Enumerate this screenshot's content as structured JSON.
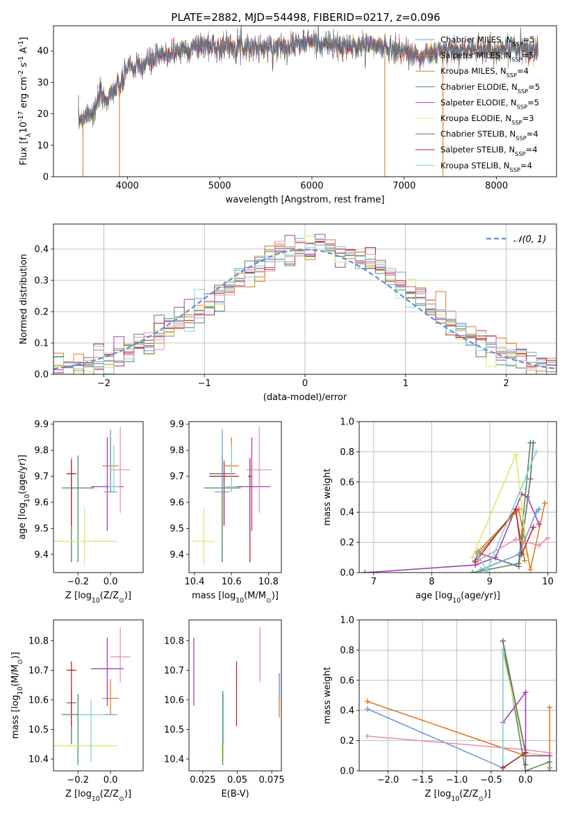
{
  "figure_title": "PLATE=2882, MJD=54498, FIBERID=0217, z=0.096",
  "colors": {
    "chabrier_miles": "#6c9bd6",
    "salpeter_miles": "#e07a22",
    "kroupa_miles": "#b88a2a",
    "chabrier_elodie": "#4f8c5e",
    "salpeter_elodie": "#a23fb0",
    "kroupa_elodie": "#d6e86a",
    "chabrier_stelib": "#6d6d6d",
    "salpeter_stelib": "#b3262a",
    "kroupa_stelib": "#7fd4d4",
    "pink": "#e691b8",
    "normal_curve": "#5b8fd6"
  },
  "chart_data": [
    {
      "id": "spectrum",
      "type": "line",
      "xlabel": "wavelength [Angstrom, rest frame]",
      "ylabel": "Flux [f$_\\lambda$10$^{-17}$ erg cm$^{-2}$ s$^{-1}$ A$^{-1}$]",
      "xlim": [
        3200,
        8650
      ],
      "ylim": [
        0,
        48
      ],
      "xticks": [
        4000,
        5000,
        6000,
        7000,
        8000
      ],
      "yticks": [
        0,
        10,
        20,
        30,
        40
      ],
      "legend_placement": "top-right",
      "legend": [
        {
          "label": "Chabrier MILES, N_SSP=5",
          "color": "#6c9bd6"
        },
        {
          "label": "Salpeter MILES, N_SSP=5",
          "color": "#e07a22"
        },
        {
          "label": "Kroupa MILES, N_SSP=4",
          "color": "#b88a2a"
        },
        {
          "label": "Chabrier ELODIE, N_SSP=5",
          "color": "#4f8c5e"
        },
        {
          "label": "Salpeter ELODIE, N_SSP=5",
          "color": "#a23fb0"
        },
        {
          "label": "Kroupa ELODIE, N_SSP=3",
          "color": "#d6e86a"
        },
        {
          "label": "Chabrier STELIB, N_SSP=4",
          "color": "#6d6d6d"
        },
        {
          "label": "Salpeter STELIB, N_SSP=4",
          "color": "#b3262a"
        },
        {
          "label": "Kroupa STELIB, N_SSP=4",
          "color": "#7fd4d4"
        }
      ],
      "envelope": {
        "x": [
          3470,
          3560,
          3650,
          3700,
          3760,
          3830,
          3900,
          3970,
          4000,
          4080,
          4150,
          4250,
          4350,
          4450,
          4550,
          4700,
          4850,
          5000,
          5200,
          5400,
          5600,
          5800,
          6000,
          6200,
          6400,
          6600,
          6800,
          7000,
          7100,
          7200,
          7300,
          7400,
          7600,
          7800,
          8000,
          8200,
          8450
        ],
        "y": [
          18,
          20,
          21,
          26,
          24,
          27,
          28,
          31,
          36,
          34,
          35,
          37,
          38,
          39,
          40,
          41,
          42,
          41,
          42,
          41,
          41,
          42,
          43,
          42,
          41,
          42,
          41,
          40,
          39,
          38,
          39,
          40,
          40,
          41,
          40,
          41,
          40
        ]
      },
      "dropouts": [
        {
          "x": 3520,
          "y_from": 18,
          "y_to": 0,
          "color": "#e07a22"
        },
        {
          "x": 3915,
          "y_from": 28,
          "y_to": 0,
          "color": "#b88a2a"
        },
        {
          "x": 6790,
          "y_from": 40,
          "y_to": 0,
          "color": "#b88a2a"
        },
        {
          "x": 7420,
          "y_from": 40,
          "y_to": 0,
          "color": "#e07a22"
        }
      ]
    },
    {
      "id": "residuals",
      "type": "bar",
      "xlabel": "(data-model)/error",
      "ylabel": "Normed distribution",
      "xlim": [
        -2.5,
        2.5
      ],
      "ylim": [
        0,
        0.48
      ],
      "xticks": [
        -2,
        -1,
        0,
        1,
        2
      ],
      "yticks": [
        0.0,
        0.1,
        0.2,
        0.3,
        0.4
      ],
      "grid": true,
      "legend": [
        {
          "label": "𝒩(0, 1)",
          "color": "#5b8fd6"
        }
      ],
      "legend_placement": "top-right",
      "bin_width": 0.1,
      "bin_start": -2.5,
      "series_colors": [
        "#6c9bd6",
        "#e07a22",
        "#b88a2a",
        "#4f8c5e",
        "#a23fb0",
        "#d6e86a",
        "#6d6d6d",
        "#b3262a",
        "#7fd4d4",
        "#e691b8"
      ]
    },
    {
      "id": "age_vs_Z",
      "type": "scatter",
      "xlabel": "Z [log$_{10}$(Z/Z$_\\odot$)]",
      "ylabel": "age  [log$_{10}$(age/yr)]",
      "xlim": [
        -0.35,
        0.2
      ],
      "ylim": [
        9.33,
        9.91
      ],
      "xticks": [
        -0.2,
        0.0
      ],
      "yticks": [
        9.4,
        9.5,
        9.6,
        9.7,
        9.8,
        9.9
      ],
      "points": [
        {
          "x": -0.24,
          "y": 9.71,
          "xerr": 0.03,
          "yerr": [
            9.37,
            9.77
          ],
          "color": "#6d6d6d"
        },
        {
          "x": -0.24,
          "y": 9.71,
          "xerr": 0.03,
          "yerr": [
            9.51,
            9.76
          ],
          "color": "#b3262a"
        },
        {
          "x": -0.2,
          "y": 9.655,
          "xerr": 0.1,
          "yerr": [
            9.37,
            9.78
          ],
          "color": "#4f8c5e"
        },
        {
          "x": -0.16,
          "y": 9.45,
          "xerr": 0.2,
          "yerr": [
            9.36,
            9.58
          ],
          "color": "#d6e86a"
        },
        {
          "x": 0.0,
          "y": 9.74,
          "xerr": 0.05,
          "yerr": [
            9.64,
            9.85
          ],
          "color": "#e07a22"
        },
        {
          "x": -0.02,
          "y": 9.66,
          "xerr": 0.1,
          "yerr": [
            9.49,
            9.85
          ],
          "color": "#a23fb0"
        },
        {
          "x": 0.06,
          "y": 9.725,
          "xerr": 0.06,
          "yerr": [
            9.56,
            9.89
          ],
          "color": "#e691b8"
        },
        {
          "x": 0.0,
          "y": 9.64,
          "xerr": 0.04,
          "yerr": [
            9.64,
            9.88
          ],
          "color": "#6c9bd6"
        },
        {
          "x": 0.02,
          "y": 9.66,
          "xerr": 0.03,
          "yerr": [
            9.64,
            9.82
          ],
          "color": "#7fd4d4"
        }
      ]
    },
    {
      "id": "age_vs_mass",
      "type": "scatter",
      "xlabel": "mass [log$_{10}$(M/M$_\\odot$)]",
      "ylabel": "",
      "xlim": [
        10.37,
        10.87
      ],
      "ylim": [
        9.33,
        9.91
      ],
      "xticks": [
        10.4,
        10.6,
        10.8
      ],
      "yticks": [
        9.4,
        9.5,
        9.6,
        9.7,
        9.8,
        9.9
      ],
      "points": [
        {
          "x": 10.55,
          "y": 9.71,
          "xerr": 0.07,
          "yerr": [
            9.37,
            9.77
          ],
          "color": "#6d6d6d"
        },
        {
          "x": 10.56,
          "y": 9.7,
          "xerr": 0.08,
          "yerr": [
            9.51,
            9.76
          ],
          "color": "#b3262a"
        },
        {
          "x": 10.55,
          "y": 9.655,
          "xerr": 0.1,
          "yerr": [
            9.37,
            9.78
          ],
          "color": "#4f8c5e"
        },
        {
          "x": 10.45,
          "y": 9.45,
          "xerr": 0.06,
          "yerr": [
            9.36,
            9.58
          ],
          "color": "#d6e86a"
        },
        {
          "x": 10.6,
          "y": 9.74,
          "xerr": 0.04,
          "yerr": [
            9.64,
            9.85
          ],
          "color": "#e07a22"
        },
        {
          "x": 10.71,
          "y": 9.66,
          "xerr": 0.1,
          "yerr": [
            9.49,
            9.85
          ],
          "color": "#a23fb0"
        },
        {
          "x": 10.75,
          "y": 9.725,
          "xerr": 0.07,
          "yerr": [
            9.56,
            9.89
          ],
          "color": "#e691b8"
        },
        {
          "x": 10.55,
          "y": 9.64,
          "xerr": 0.04,
          "yerr": [
            9.64,
            9.88
          ],
          "color": "#6c9bd6"
        },
        {
          "x": 10.6,
          "y": 9.66,
          "xerr": 0.03,
          "yerr": [
            9.64,
            9.82
          ],
          "color": "#7fd4d4"
        },
        {
          "x": 10.7,
          "y": 9.7,
          "xerr": 0.01,
          "yerr": [
            9.37,
            9.77
          ],
          "color": "#b3262a"
        }
      ]
    },
    {
      "id": "weight_vs_age",
      "type": "line",
      "xlabel": "age  [log$_{10}$(age/yr)]",
      "ylabel": "mass weight",
      "xlim": [
        6.75,
        10.15
      ],
      "ylim": [
        0,
        1.0
      ],
      "xticks": [
        7,
        8,
        9,
        10
      ],
      "yticks": [
        0.0,
        0.2,
        0.4,
        0.6,
        0.8,
        1.0
      ],
      "grid": true,
      "series": [
        {
          "color": "#a23fb0",
          "x": [
            6.85,
            8.75,
            9.1,
            9.55,
            9.65,
            9.85
          ],
          "y": [
            0.0,
            0.05,
            0.1,
            0.52,
            0.5,
            0.32
          ]
        },
        {
          "color": "#6d6d6d",
          "x": [
            8.75,
            8.8,
            9.5,
            9.7,
            9.75
          ],
          "y": [
            0.08,
            0.13,
            0.04,
            0.62,
            0.86
          ]
        },
        {
          "color": "#4f8c5e",
          "x": [
            8.7,
            9.5,
            9.7
          ],
          "y": [
            0.0,
            0.06,
            0.86
          ]
        },
        {
          "color": "#d6e86a",
          "x": [
            8.7,
            9.45,
            9.65
          ],
          "y": [
            0.1,
            0.78,
            0.12
          ]
        },
        {
          "color": "#e07a22",
          "x": [
            8.8,
            9.5,
            9.7,
            9.95
          ],
          "y": [
            0.12,
            0.42,
            0.02,
            0.46
          ]
        },
        {
          "color": "#b88a2a",
          "x": [
            8.8,
            9.45,
            9.6
          ],
          "y": [
            0.14,
            0.4,
            0.08
          ]
        },
        {
          "color": "#b3262a",
          "x": [
            8.75,
            9.45,
            9.55,
            9.75
          ],
          "y": [
            0.07,
            0.42,
            0.12,
            0.3
          ]
        },
        {
          "color": "#e691b8",
          "x": [
            8.8,
            9.45,
            9.85,
            10.0
          ],
          "y": [
            0.08,
            0.22,
            0.18,
            0.23
          ]
        },
        {
          "color": "#6c9bd6",
          "x": [
            8.85,
            9.5,
            9.8,
            9.85
          ],
          "y": [
            0.02,
            0.12,
            0.4,
            0.42
          ]
        },
        {
          "color": "#7fd4d4",
          "x": [
            8.8,
            8.95,
            9.8
          ],
          "y": [
            0.12,
            0.01,
            0.8
          ]
        }
      ]
    },
    {
      "id": "mass_vs_Z",
      "type": "scatter",
      "xlabel": "Z [log$_{10}$(Z/Z$_\\odot$)]",
      "ylabel": "mass [log$_{10}$(M/M$_\\odot$)]",
      "xlim": [
        -0.35,
        0.2
      ],
      "ylim": [
        10.36,
        10.87
      ],
      "xticks": [
        -0.2,
        0.0
      ],
      "yticks": [
        10.4,
        10.5,
        10.6,
        10.7,
        10.8
      ],
      "points": [
        {
          "x": -0.24,
          "y": 10.59,
          "xerr": 0.03,
          "yerr": [
            10.45,
            10.63
          ],
          "color": "#6d6d6d"
        },
        {
          "x": -0.24,
          "y": 10.7,
          "xerr": 0.03,
          "yerr": [
            10.51,
            10.73
          ],
          "color": "#b3262a"
        },
        {
          "x": -0.2,
          "y": 10.55,
          "xerr": 0.1,
          "yerr": [
            10.38,
            10.62
          ],
          "color": "#4f8c5e"
        },
        {
          "x": -0.16,
          "y": 10.445,
          "xerr": 0.2,
          "yerr": [
            10.445,
            10.445
          ],
          "color": "#d6e86a"
        },
        {
          "x": 0.0,
          "y": 10.605,
          "xerr": 0.05,
          "yerr": [
            10.55,
            10.67
          ],
          "color": "#e07a22"
        },
        {
          "x": -0.02,
          "y": 10.705,
          "xerr": 0.1,
          "yerr": [
            10.58,
            10.81
          ],
          "color": "#a23fb0"
        },
        {
          "x": 0.06,
          "y": 10.745,
          "xerr": 0.06,
          "yerr": [
            10.66,
            10.845
          ],
          "color": "#e691b8"
        },
        {
          "x": 0.0,
          "y": 10.55,
          "xerr": 0.04,
          "yerr": [
            10.55,
            10.55
          ],
          "color": "#6c9bd6"
        },
        {
          "x": -0.12,
          "y": 10.55,
          "xerr": 0.08,
          "yerr": [
            10.39,
            10.6
          ],
          "color": "#7fd4d4"
        }
      ]
    },
    {
      "id": "mass_vs_EBV",
      "type": "scatter",
      "xlabel": "E(B-V)",
      "ylabel": "",
      "xlim": [
        0.015,
        0.082
      ],
      "ylim": [
        10.36,
        10.87
      ],
      "xticks": [
        0.025,
        0.05,
        0.075
      ],
      "yticks": [
        10.4,
        10.5,
        10.6,
        10.7,
        10.8
      ],
      "points": [
        {
          "x": 0.0185,
          "yerr": [
            10.58,
            10.81
          ],
          "color": "#a23fb0"
        },
        {
          "x": 0.0395,
          "yerr": [
            10.38,
            10.63
          ],
          "color": "#4f8c5e"
        },
        {
          "x": 0.04,
          "yerr": [
            10.4,
            10.46
          ],
          "color": "#d6e86a"
        },
        {
          "x": 0.04,
          "yerr": [
            10.45,
            10.62
          ],
          "color": "#7fd4d4"
        },
        {
          "x": 0.0495,
          "yerr": [
            10.51,
            10.73
          ],
          "color": "#b3262a"
        },
        {
          "x": 0.0665,
          "yerr": [
            10.66,
            10.845
          ],
          "color": "#e691b8"
        },
        {
          "x": 0.0805,
          "yerr": [
            10.54,
            10.69
          ],
          "color": "#e07a22"
        },
        {
          "x": 0.0805,
          "yerr": [
            10.6,
            10.69
          ],
          "color": "#6c9bd6"
        }
      ]
    },
    {
      "id": "weight_vs_Z",
      "type": "line",
      "xlabel": "Z [log$_{10}$(Z/Z$_\\odot$)]",
      "ylabel": "mass weight",
      "xlim": [
        -2.42,
        0.45
      ],
      "ylim": [
        0,
        1.0
      ],
      "xticks": [
        -2.0,
        -1.5,
        -1.0,
        -0.5,
        0.0
      ],
      "yticks": [
        0.0,
        0.2,
        0.4,
        0.6,
        0.8,
        1.0
      ],
      "grid": true,
      "series": [
        {
          "color": "#e07a22",
          "x": [
            -2.3,
            0.0,
            0.35,
            0.35,
            0.35
          ],
          "y": [
            0.46,
            0.1,
            0.1,
            0.42,
            0.02
          ]
        },
        {
          "color": "#6c9bd6",
          "x": [
            -2.3,
            -0.33,
            -0.33,
            0.0,
            0.35
          ],
          "y": [
            0.41,
            0.02,
            0.8,
            0.12,
            0.1
          ]
        },
        {
          "color": "#e691b8",
          "x": [
            -2.3,
            0.0,
            0.35,
            0.35
          ],
          "y": [
            0.23,
            0.14,
            0.12,
            0.1
          ]
        },
        {
          "color": "#4f8c5e",
          "x": [
            -0.33,
            0.0,
            0.35,
            0.35
          ],
          "y": [
            0.86,
            0.0,
            0.06,
            0.0
          ]
        },
        {
          "color": "#d6e86a",
          "x": [
            -0.33,
            0.0,
            0.35
          ],
          "y": [
            0.78,
            0.12,
            0.1
          ]
        },
        {
          "color": "#a23fb0",
          "x": [
            -0.33,
            0.0,
            0.0,
            0.35
          ],
          "y": [
            0.32,
            0.52,
            0.1,
            0.1
          ]
        },
        {
          "color": "#7fd4d4",
          "x": [
            -0.33,
            -0.33,
            0.0
          ],
          "y": [
            0.8,
            0.02,
            0.12
          ]
        },
        {
          "color": "#6d6d6d",
          "x": [
            -0.33,
            0.0,
            0.0
          ],
          "y": [
            0.86,
            0.12,
            0.04
          ]
        },
        {
          "color": "#b3262a",
          "x": [
            -0.33,
            0.0
          ],
          "y": [
            0.02,
            0.12
          ]
        }
      ]
    }
  ]
}
